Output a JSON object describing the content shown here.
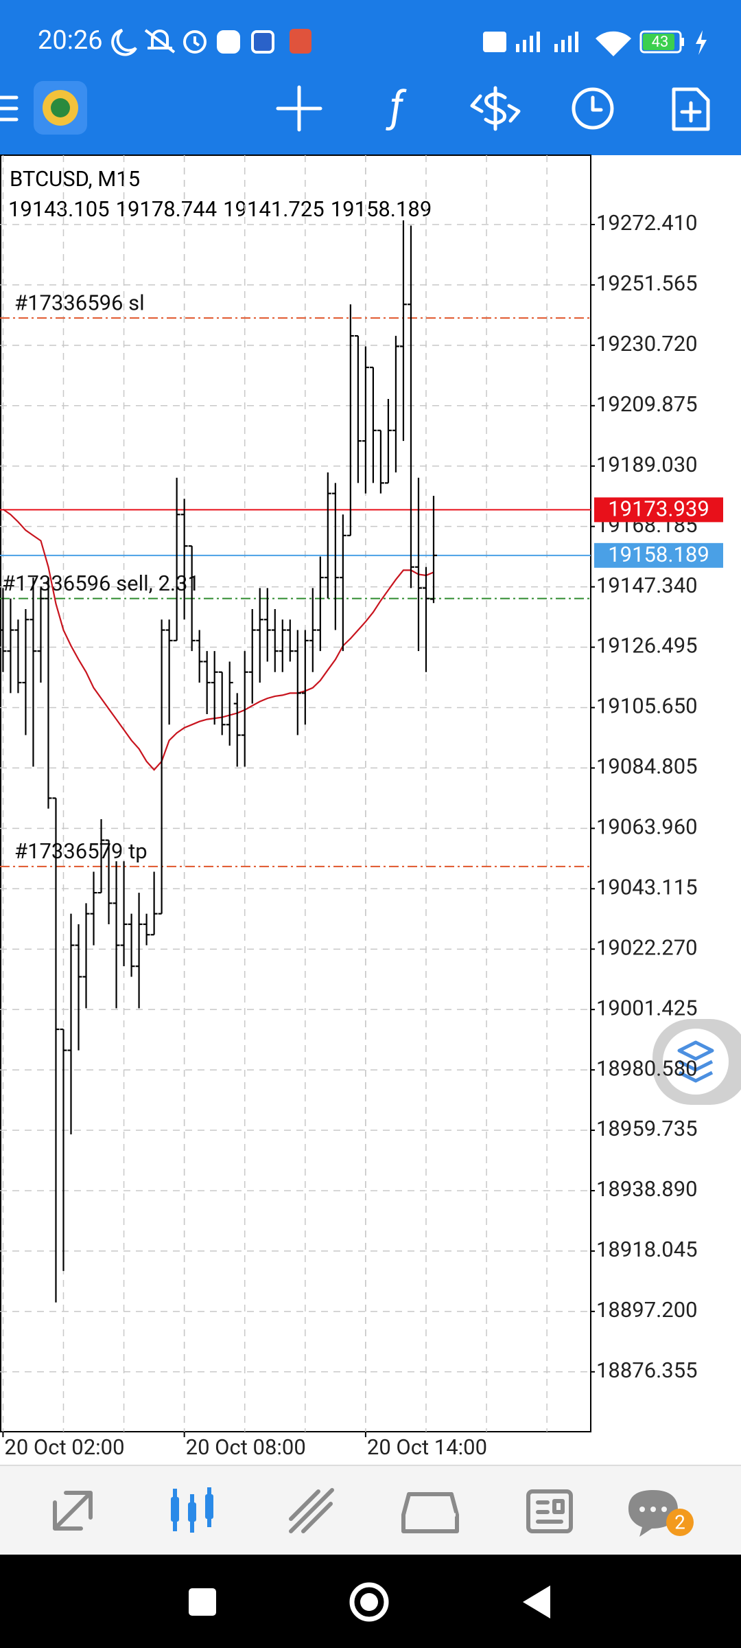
{
  "status_bar": {
    "time": "20:26",
    "battery": "43"
  },
  "nav": {
    "badge": "2"
  },
  "chart_data": {
    "type": "ohlc",
    "title": "BTCUSD, M15",
    "open": [
      19132.42,
      19125.16,
      19132.42,
      19114.28,
      19136.04,
      19125.16,
      19143.3,
      19074.39,
      18994.59,
      18987.34,
      19023.61,
      19012.73,
      19034.49,
      19041.74,
      19059.88,
      19038.12,
      19023.61,
      19030.86,
      19016.36,
      19030.86,
      19027.24,
      19034.49,
      19132.42,
      19128.79,
      19172.31,
      19161.43,
      19128.79,
      19121.54,
      19114.28,
      19117.91,
      19099.77,
      19107.03,
      19096.15,
      19117.91,
      19132.42,
      19136.04,
      19132.42,
      19125.16,
      19132.42,
      19125.16,
      19110.65,
      19128.79,
      19132.42,
      19150.55,
      19179.57,
      19150.55,
      19165.06,
      19233.97,
      19197.7,
      19223.09,
      19201.33,
      19183.19,
      19201.33,
      19230.34,
      19244.85,
      19154.18,
      19146.92,
      19143.105
    ],
    "high": [
      19146.92,
      19143.3,
      19136.04,
      19139.67,
      19150.55,
      19146.92,
      19150.55,
      19074.39,
      18994.59,
      19034.49,
      19030.86,
      19038.12,
      19049.0,
      19067.13,
      19059.88,
      19052.62,
      19052.62,
      19034.49,
      19041.74,
      19034.49,
      19049.0,
      19136.04,
      19136.04,
      19185.01,
      19177.75,
      19161.43,
      19132.42,
      19125.16,
      19125.16,
      19117.91,
      19121.54,
      19110.65,
      19125.16,
      19139.67,
      19146.92,
      19146.92,
      19139.67,
      19136.04,
      19136.04,
      19132.42,
      19132.42,
      19146.92,
      19157.8,
      19186.82,
      19183.19,
      19172.31,
      19244.85,
      19233.97,
      19230.34,
      19223.09,
      19201.33,
      19212.21,
      19233.97,
      19273.87,
      19272.05,
      19185.01,
      19154.18,
      19178.744
    ],
    "low": [
      19117.91,
      19110.65,
      19110.65,
      19096.15,
      19085.27,
      19114.28,
      19070.76,
      18900.29,
      18911.18,
      18958.32,
      18987.34,
      19001.85,
      19023.61,
      19041.74,
      19030.86,
      19001.85,
      19016.36,
      19012.73,
      19001.85,
      19023.61,
      19027.24,
      19034.49,
      19099.77,
      19128.79,
      19136.04,
      19125.16,
      19114.28,
      19103.4,
      19099.77,
      19096.15,
      19092.52,
      19085.27,
      19085.27,
      19107.03,
      19114.28,
      19121.54,
      19117.91,
      19117.91,
      19121.54,
      19096.15,
      19099.77,
      19117.91,
      19125.16,
      19143.3,
      19132.42,
      19125.16,
      19165.06,
      19183.19,
      19179.57,
      19183.19,
      19179.57,
      19183.19,
      19186.82,
      19197.7,
      19146.92,
      19125.16,
      19117.91,
      19141.725
    ],
    "close": [
      19125.16,
      19132.42,
      19114.28,
      19136.04,
      19125.16,
      19143.3,
      19074.39,
      18994.59,
      18987.34,
      19023.61,
      19012.73,
      19034.49,
      19041.74,
      19059.88,
      19038.12,
      19023.61,
      19030.86,
      19016.36,
      19030.86,
      19027.24,
      19034.49,
      19132.42,
      19128.79,
      19172.31,
      19161.43,
      19128.79,
      19121.54,
      19114.28,
      19117.91,
      19099.77,
      19114.28,
      19096.15,
      19117.91,
      19132.42,
      19136.04,
      19132.42,
      19125.16,
      19132.42,
      19125.16,
      19110.65,
      19128.79,
      19132.42,
      19150.55,
      19179.57,
      19150.55,
      19165.06,
      19233.97,
      19197.7,
      19223.09,
      19201.33,
      19183.19,
      19201.33,
      19230.34,
      19244.85,
      19154.18,
      19146.92,
      19143.3,
      19158.189
    ],
    "ma": [
      19174.13,
      19172.31,
      19169.77,
      19166.87,
      19165.06,
      19163.24,
      19154.18,
      19141.48,
      19132.42,
      19126.98,
      19122.26,
      19117.91,
      19112.47,
      19108.84,
      19105.21,
      19101.59,
      19097.96,
      19094.33,
      19091.43,
      19087.08,
      19084.18,
      19087.08,
      19094.33,
      19096.87,
      19098.69,
      19099.77,
      19100.86,
      19101.59,
      19101.95,
      19102.31,
      19103.04,
      19103.76,
      19104.85,
      19106.3,
      19107.75,
      19108.84,
      19109.57,
      19109.93,
      19110.65,
      19110.65,
      19111.38,
      19112.47,
      19115.01,
      19118.63,
      19122.26,
      19126.98,
      19129.51,
      19132.42,
      19135.32,
      19138.58,
      19142.57,
      19146.2,
      19149.83,
      19153.09,
      19153.09,
      19151.64,
      19151.28,
      19152.36
    ],
    "color": "#000000",
    "ma_color": "#c8141e",
    "xlim": [
      -0.4,
      77.8
    ],
    "xticks": [
      {
        "value": 0,
        "label": "20 Oct 02:00"
      },
      {
        "value": 24,
        "label": "20 Oct 08:00"
      },
      {
        "value": 48,
        "label": "20 Oct 14:00"
      }
    ],
    "ylim": [
      18855.68,
      19296.35
    ],
    "yticks": [
      {
        "value": 19272.41,
        "label": "19272.410"
      },
      19251.565,
      {
        "value": 19230.72,
        "label": "19230.720"
      },
      19209.875,
      {
        "value": 19189.03,
        "label": "19189.030"
      },
      19168.185,
      {
        "value": 19147.34,
        "label": "19147.340"
      },
      19126.495,
      {
        "value": 19105.65,
        "label": "19105.650"
      },
      19084.805,
      {
        "value": 19063.96,
        "label": "19063.960"
      },
      19043.115,
      {
        "value": 19022.27,
        "label": "19022.270"
      },
      19001.425,
      {
        "value": 18980.58,
        "label": "18980.580"
      },
      18959.735,
      {
        "value": 18938.89,
        "label": "18938.890"
      },
      18918.045,
      {
        "value": 18897.2,
        "label": "18897.200"
      },
      18876.355
    ],
    "grid": true,
    "ask": 19173.939,
    "ask_color": "#e8101a",
    "bid": 19158.189,
    "bid_color": "#4aa0e6",
    "orders": [
      {
        "label": "#17336596 sl",
        "value": 19240.13,
        "color": "#e0562b"
      },
      {
        "label": "#17336596 sell, 2.31",
        "value": 19143.3,
        "color": "#2e8b2e"
      },
      {
        "label": "#17336579 tp",
        "value": 19050.8,
        "color": "#e0562b"
      }
    ]
  }
}
